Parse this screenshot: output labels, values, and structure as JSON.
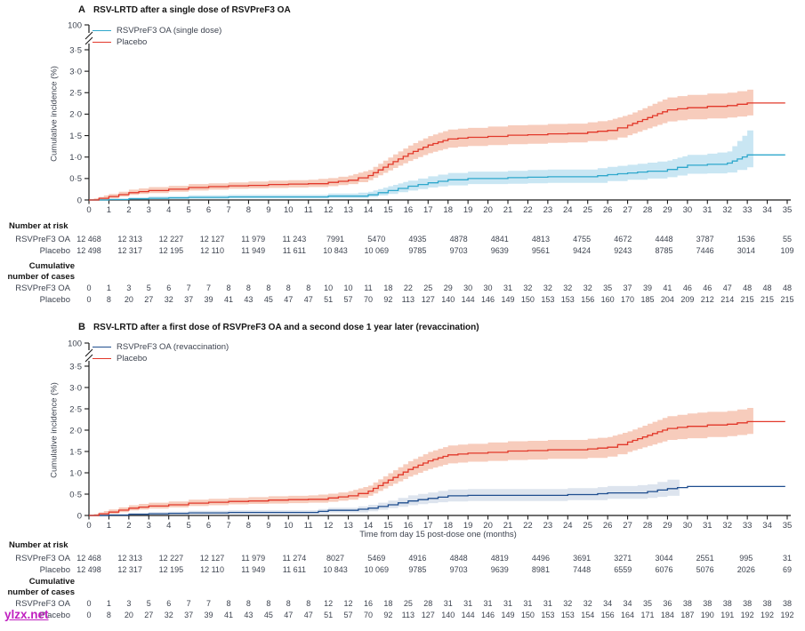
{
  "watermark": {
    "text": "ylzx.net",
    "color": "#c020c0"
  },
  "chart_data": [
    {
      "type": "line",
      "panel_label": "A",
      "title": "RSV-LRTD after a single dose of RSVPreF3 OA",
      "ylabel": "Cumulative incidence (%)",
      "xlabel": "",
      "ylim": [
        0,
        3.5
      ],
      "xlim": [
        0,
        35
      ],
      "ytop_label": "100",
      "ytick_labels": [
        "0",
        "0·5",
        "1·0",
        "1·5",
        "2·0",
        "2·5",
        "3·0",
        "3·5"
      ],
      "ytick_values": [
        0,
        0.5,
        1.0,
        1.5,
        2.0,
        2.5,
        3.0,
        3.5
      ],
      "xticks": [
        0,
        1,
        2,
        3,
        4,
        5,
        6,
        7,
        8,
        9,
        10,
        11,
        12,
        13,
        14,
        15,
        16,
        17,
        18,
        19,
        20,
        21,
        22,
        23,
        24,
        25,
        26,
        27,
        28,
        29,
        30,
        31,
        32,
        33,
        34,
        35
      ],
      "months": [
        0,
        1,
        2,
        3,
        4,
        5,
        6,
        7,
        8,
        9,
        10,
        11,
        12,
        13,
        14,
        15,
        16,
        17,
        18,
        19,
        20,
        21,
        22,
        23,
        24,
        25,
        26,
        27,
        28,
        29,
        30,
        31,
        32,
        33,
        34,
        35
      ],
      "legend_position": "top-left-inside",
      "grid": false,
      "series": [
        {
          "name": "RSVPreF3 OA (single dose)",
          "color": "#2fa8cc",
          "band_color": "#c6e5f2",
          "y": [
            0,
            0.01,
            0.03,
            0.04,
            0.05,
            0.06,
            0.06,
            0.07,
            0.07,
            0.07,
            0.07,
            0.07,
            0.09,
            0.09,
            0.12,
            0.22,
            0.32,
            0.4,
            0.47,
            0.5,
            0.5,
            0.52,
            0.53,
            0.54,
            0.54,
            0.54,
            0.59,
            0.63,
            0.67,
            0.71,
            0.81,
            0.83,
            0.86,
            1.05,
            1.05,
            1.05
          ],
          "lo": [
            0,
            0,
            0.01,
            0.02,
            0.02,
            0.03,
            0.03,
            0.04,
            0.04,
            0.04,
            0.04,
            0.04,
            0.05,
            0.05,
            0.07,
            0.14,
            0.22,
            0.29,
            0.34,
            0.37,
            0.37,
            0.38,
            0.39,
            0.4,
            0.4,
            0.4,
            0.44,
            0.47,
            0.5,
            0.53,
            0.61,
            0.62,
            0.64,
            0.76
          ],
          "hi": [
            0,
            0.03,
            0.06,
            0.08,
            0.09,
            0.11,
            0.11,
            0.12,
            0.12,
            0.12,
            0.12,
            0.12,
            0.15,
            0.15,
            0.19,
            0.32,
            0.45,
            0.55,
            0.63,
            0.66,
            0.66,
            0.68,
            0.7,
            0.71,
            0.71,
            0.71,
            0.77,
            0.82,
            0.87,
            0.92,
            1.05,
            1.08,
            1.13,
            1.62
          ],
          "band_end": 33.3,
          "line_end": 34.9
        },
        {
          "name": "Placebo",
          "color": "#e2382a",
          "band_color": "#f7c9b8",
          "y": [
            0,
            0.08,
            0.17,
            0.22,
            0.25,
            0.29,
            0.31,
            0.33,
            0.34,
            0.36,
            0.37,
            0.38,
            0.41,
            0.46,
            0.57,
            0.83,
            1.08,
            1.28,
            1.42,
            1.46,
            1.48,
            1.51,
            1.52,
            1.54,
            1.55,
            1.58,
            1.62,
            1.74,
            1.92,
            2.1,
            2.15,
            2.18,
            2.2,
            2.26,
            2.26,
            2.26
          ],
          "lo": [
            0,
            0.04,
            0.12,
            0.16,
            0.19,
            0.22,
            0.24,
            0.26,
            0.27,
            0.28,
            0.29,
            0.3,
            0.32,
            0.37,
            0.46,
            0.69,
            0.91,
            1.09,
            1.22,
            1.26,
            1.28,
            1.3,
            1.31,
            1.33,
            1.34,
            1.37,
            1.4,
            1.51,
            1.67,
            1.83,
            1.88,
            1.9,
            1.92,
            1.97
          ],
          "hi": [
            0,
            0.14,
            0.24,
            0.3,
            0.33,
            0.37,
            0.39,
            0.41,
            0.43,
            0.45,
            0.46,
            0.47,
            0.51,
            0.57,
            0.7,
            0.99,
            1.27,
            1.49,
            1.64,
            1.68,
            1.71,
            1.74,
            1.75,
            1.77,
            1.78,
            1.81,
            1.86,
            1.99,
            2.19,
            2.39,
            2.45,
            2.48,
            2.5,
            2.57
          ],
          "band_end": 33.3,
          "line_end": 34.9
        }
      ],
      "number_at_risk": {
        "header": "Number at risk",
        "rows": [
          {
            "label": "RSVPreF3 OA",
            "values": [
              "12 468",
              "12 313",
              "12 227",
              "12 127",
              "11 979",
              "11 243",
              "7991",
              "5470",
              "4935",
              "4878",
              "4841",
              "4813",
              "4755",
              "4672",
              "4448",
              "3787",
              "1536",
              "55"
            ]
          },
          {
            "label": "Placebo",
            "values": [
              "12 498",
              "12 317",
              "12 195",
              "12 110",
              "11 949",
              "11 611",
              "10 843",
              "10 069",
              "9785",
              "9703",
              "9639",
              "9561",
              "9424",
              "9243",
              "8785",
              "7446",
              "3014",
              "109"
            ]
          }
        ]
      },
      "cumulative_cases": {
        "header_line1": "Cumulative",
        "header_line2": "number of cases",
        "rows": [
          {
            "label": "RSVPreF3 OA",
            "values": [
              0,
              1,
              3,
              5,
              6,
              7,
              7,
              8,
              8,
              8,
              8,
              8,
              10,
              10,
              11,
              18,
              22,
              25,
              29,
              30,
              30,
              31,
              32,
              32,
              32,
              32,
              35,
              37,
              39,
              41,
              46,
              46,
              47,
              48,
              48,
              48
            ]
          },
          {
            "label": "Placebo",
            "values": [
              0,
              8,
              20,
              27,
              32,
              37,
              39,
              41,
              43,
              45,
              47,
              47,
              51,
              57,
              70,
              92,
              113,
              127,
              140,
              144,
              146,
              149,
              150,
              153,
              153,
              156,
              160,
              170,
              185,
              204,
              209,
              212,
              214,
              215,
              215,
              215
            ]
          }
        ]
      }
    },
    {
      "type": "line",
      "panel_label": "B",
      "title": "RSV-LRTD after a first dose of RSVPreF3 OA and a second dose 1 year later (revaccination)",
      "ylabel": "Cumulative incidence (%)",
      "xlabel": "Time from day 15 post-dose one (months)",
      "ylim": [
        0,
        3.5
      ],
      "xlim": [
        0,
        35
      ],
      "ytop_label": "100",
      "ytick_labels": [
        "0",
        "0·5",
        "1·0",
        "1·5",
        "2·0",
        "2·5",
        "3·0",
        "3·5"
      ],
      "ytick_values": [
        0,
        0.5,
        1.0,
        1.5,
        2.0,
        2.5,
        3.0,
        3.5
      ],
      "xticks": [
        0,
        1,
        2,
        3,
        4,
        5,
        6,
        7,
        8,
        9,
        10,
        11,
        12,
        13,
        14,
        15,
        16,
        17,
        18,
        19,
        20,
        21,
        22,
        23,
        24,
        25,
        26,
        27,
        28,
        29,
        30,
        31,
        32,
        33,
        34,
        35
      ],
      "months": [
        0,
        1,
        2,
        3,
        4,
        5,
        6,
        7,
        8,
        9,
        10,
        11,
        12,
        13,
        14,
        15,
        16,
        17,
        18,
        19,
        20,
        21,
        22,
        23,
        24,
        25,
        26,
        27,
        28,
        29,
        30,
        31,
        32,
        33,
        34,
        35
      ],
      "legend_position": "top-left-inside",
      "grid": false,
      "series": [
        {
          "name": "RSVPreF3 OA (revaccination)",
          "color": "#1f4e8f",
          "band_color": "#dbe3ed",
          "y": [
            0,
            0.01,
            0.03,
            0.04,
            0.05,
            0.06,
            0.06,
            0.07,
            0.07,
            0.07,
            0.07,
            0.07,
            0.12,
            0.12,
            0.17,
            0.25,
            0.34,
            0.4,
            0.46,
            0.47,
            0.47,
            0.47,
            0.47,
            0.47,
            0.49,
            0.49,
            0.53,
            0.53,
            0.56,
            0.63,
            0.68,
            0.68,
            0.68,
            0.68,
            0.68,
            0.68
          ],
          "lo": [
            0,
            0,
            0.01,
            0.02,
            0.02,
            0.03,
            0.03,
            0.04,
            0.04,
            0.04,
            0.04,
            0.04,
            0.07,
            0.07,
            0.1,
            0.17,
            0.24,
            0.29,
            0.33,
            0.34,
            0.34,
            0.34,
            0.34,
            0.34,
            0.36,
            0.36,
            0.39,
            0.39,
            0.41,
            0.46
          ],
          "hi": [
            0,
            0.03,
            0.06,
            0.08,
            0.09,
            0.11,
            0.11,
            0.12,
            0.12,
            0.12,
            0.12,
            0.12,
            0.18,
            0.18,
            0.25,
            0.35,
            0.47,
            0.54,
            0.61,
            0.62,
            0.62,
            0.62,
            0.62,
            0.62,
            0.64,
            0.64,
            0.69,
            0.69,
            0.73,
            0.84
          ],
          "band_end": 29.6,
          "line_end": 34.9
        },
        {
          "name": "Placebo",
          "color": "#e2382a",
          "band_color": "#f7c9b8",
          "y": [
            0,
            0.08,
            0.17,
            0.22,
            0.25,
            0.29,
            0.31,
            0.33,
            0.34,
            0.36,
            0.37,
            0.38,
            0.41,
            0.46,
            0.57,
            0.83,
            1.08,
            1.28,
            1.42,
            1.46,
            1.48,
            1.51,
            1.52,
            1.54,
            1.54,
            1.56,
            1.6,
            1.72,
            1.88,
            2.04,
            2.09,
            2.12,
            2.14,
            2.2,
            2.2,
            2.2
          ],
          "lo": [
            0,
            0.04,
            0.12,
            0.16,
            0.19,
            0.22,
            0.24,
            0.26,
            0.27,
            0.28,
            0.29,
            0.3,
            0.32,
            0.37,
            0.46,
            0.69,
            0.91,
            1.09,
            1.22,
            1.26,
            1.28,
            1.3,
            1.31,
            1.33,
            1.33,
            1.35,
            1.38,
            1.49,
            1.63,
            1.77,
            1.81,
            1.84,
            1.86,
            1.91
          ],
          "hi": [
            0,
            0.14,
            0.24,
            0.3,
            0.33,
            0.37,
            0.39,
            0.41,
            0.43,
            0.45,
            0.46,
            0.47,
            0.51,
            0.57,
            0.7,
            0.99,
            1.27,
            1.49,
            1.64,
            1.68,
            1.71,
            1.74,
            1.75,
            1.77,
            1.77,
            1.8,
            1.84,
            1.97,
            2.15,
            2.33,
            2.39,
            2.43,
            2.45,
            2.52
          ],
          "band_end": 33.3,
          "line_end": 34.9
        }
      ],
      "number_at_risk": {
        "header": "Number at risk",
        "rows": [
          {
            "label": "RSVPreF3 OA",
            "values": [
              "12 468",
              "12 313",
              "12 227",
              "12 127",
              "11 979",
              "11 274",
              "8027",
              "5469",
              "4916",
              "4848",
              "4819",
              "4496",
              "3691",
              "3271",
              "3044",
              "2551",
              "995",
              "31"
            ]
          },
          {
            "label": "Placebo",
            "values": [
              "12 498",
              "12 317",
              "12 195",
              "12 110",
              "11 949",
              "11 611",
              "10 843",
              "10 069",
              "9785",
              "9703",
              "9639",
              "8981",
              "7448",
              "6559",
              "6076",
              "5076",
              "2026",
              "69"
            ]
          }
        ]
      },
      "cumulative_cases": {
        "header_line1": "Cumulative",
        "header_line2": "number of cases",
        "rows": [
          {
            "label": "RSVPreF3 OA",
            "values": [
              0,
              1,
              3,
              5,
              6,
              7,
              7,
              8,
              8,
              8,
              8,
              8,
              12,
              12,
              16,
              18,
              25,
              28,
              31,
              31,
              31,
              31,
              31,
              31,
              32,
              32,
              34,
              34,
              35,
              36,
              38,
              38,
              38,
              38,
              38,
              38
            ]
          },
          {
            "label": "Placebo",
            "values": [
              0,
              8,
              20,
              27,
              32,
              37,
              39,
              41,
              43,
              45,
              47,
              47,
              51,
              57,
              70,
              92,
              113,
              127,
              140,
              144,
              146,
              149,
              150,
              153,
              153,
              154,
              156,
              164,
              171,
              184,
              187,
              190,
              191,
              192,
              192,
              192
            ]
          }
        ]
      }
    }
  ]
}
